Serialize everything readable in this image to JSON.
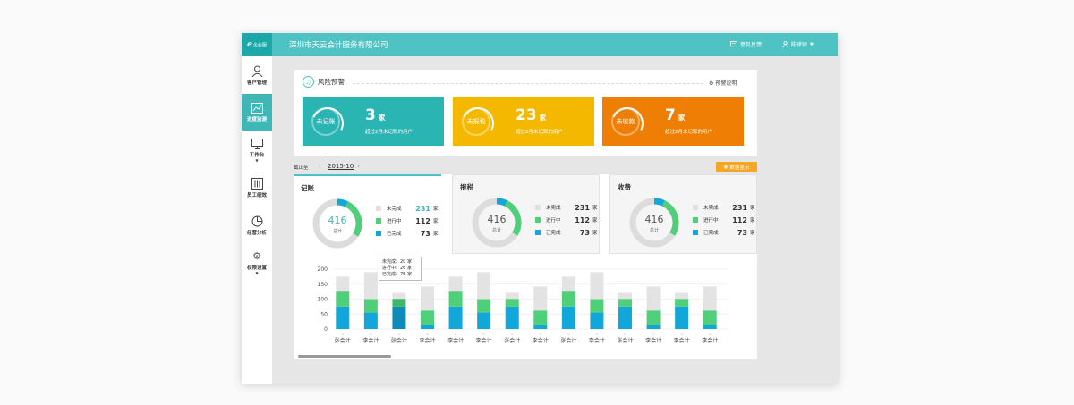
{
  "app": {
    "logo_text": "企业圈",
    "company": "深圳市天云会计服务有限公司",
    "feedback_label": "意见反馈",
    "user_name": "陈律律"
  },
  "colors": {
    "teal": "#2ab5b3",
    "yellow": "#f5b800",
    "orange": "#ef7f04",
    "grey": "#dcdcdc",
    "green": "#4fcf7a",
    "blue": "#12a7db"
  },
  "sidebar": {
    "items": [
      {
        "label": "客户管理",
        "icon": "user-icon"
      },
      {
        "label": "进度监测",
        "icon": "chart-icon"
      },
      {
        "label": "工作台",
        "icon": "monitor-icon"
      },
      {
        "label": "员工绩效",
        "icon": "sliders-icon"
      },
      {
        "label": "经营分析",
        "icon": "pie-icon"
      },
      {
        "label": "权限设置",
        "icon": "gear-icon"
      }
    ]
  },
  "risk": {
    "title": "风险预警",
    "link": "预警说明",
    "cards": [
      {
        "ring": "未记账",
        "count": "3",
        "unit": "家",
        "desc": "超过2月未记账的用户"
      },
      {
        "ring": "未报税",
        "count": "23",
        "unit": "家",
        "desc": "超过2月未记账的用户"
      },
      {
        "ring": "未收款",
        "count": "7",
        "unit": "家",
        "desc": "超过2月未记账的用户"
      }
    ]
  },
  "period": {
    "cutoff_label": "截止至",
    "value": "2015-10",
    "button": "数据显示"
  },
  "tabs": [
    {
      "title": "记账",
      "total": "416",
      "sub": "总计",
      "legend": [
        {
          "label": "未完成",
          "value": "231",
          "unit": "家"
        },
        {
          "label": "进行中",
          "value": "112",
          "unit": "家"
        },
        {
          "label": "已完成",
          "value": "73",
          "unit": "家"
        }
      ]
    },
    {
      "title": "报税",
      "total": "416",
      "sub": "总计",
      "legend": [
        {
          "label": "未完成",
          "value": "231",
          "unit": "家"
        },
        {
          "label": "进行中",
          "value": "112",
          "unit": "家"
        },
        {
          "label": "已完成",
          "value": "73",
          "unit": "家"
        }
      ]
    },
    {
      "title": "收费",
      "total": "416",
      "sub": "总计",
      "legend": [
        {
          "label": "未完成",
          "value": "231",
          "unit": "家"
        },
        {
          "label": "进行中",
          "value": "112",
          "unit": "家"
        },
        {
          "label": "已完成",
          "value": "73",
          "unit": "家"
        }
      ]
    }
  ],
  "tooltip": {
    "line1": "未完成：20 家",
    "line2": "进行中：26 家",
    "line3": "已完成：75 家"
  },
  "chart_data": {
    "type": "bar",
    "stacked": true,
    "ylim": [
      0,
      200
    ],
    "yticks": [
      "0",
      "50",
      "100",
      "150",
      "200"
    ],
    "categories": [
      "张会计",
      "李会计",
      "张会计",
      "李会计",
      "李会计",
      "李会计",
      "张会计",
      "李会计",
      "张会计",
      "李会计",
      "张会计",
      "李会计",
      "李会计",
      "李会计"
    ],
    "series": [
      {
        "name": "已完成",
        "color": "#12a7db",
        "values": [
          75,
          55,
          75,
          12,
          75,
          55,
          75,
          12,
          75,
          55,
          75,
          12,
          75,
          12
        ]
      },
      {
        "name": "进行中",
        "color": "#4fcf7a",
        "values": [
          50,
          45,
          26,
          50,
          50,
          45,
          26,
          50,
          50,
          45,
          26,
          50,
          26,
          50
        ]
      },
      {
        "name": "未完成",
        "color": "#e3e3e3",
        "values": [
          50,
          90,
          20,
          80,
          50,
          90,
          20,
          80,
          50,
          90,
          20,
          80,
          20,
          80
        ]
      }
    ],
    "grid": true
  }
}
